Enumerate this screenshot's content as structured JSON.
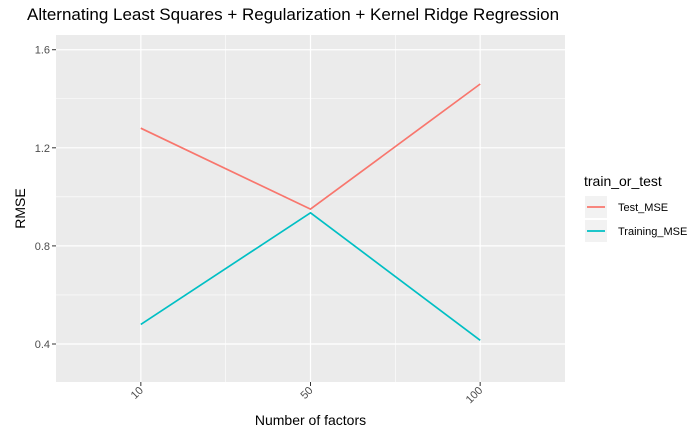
{
  "chart_data": {
    "type": "line",
    "title": "Alternating Least Squares + Regularization + Kernel Ridge Regression",
    "xlabel": "Number of factors",
    "ylabel": "RMSE",
    "x": [
      10,
      50,
      100
    ],
    "x_tick_labels": [
      "10",
      "50",
      "100"
    ],
    "y_ticks": [
      0.4,
      0.8,
      1.2,
      1.6
    ],
    "y_tick_labels": [
      "0.4",
      "0.8",
      "1.2",
      "1.6"
    ],
    "xlim": [
      0.5,
      3.5
    ],
    "ylim": [
      0.245,
      1.66
    ],
    "grid": true,
    "legend": {
      "title": "train_or_test",
      "position": "right"
    },
    "series": [
      {
        "name": "Test_MSE",
        "color": "#F8766D",
        "values": [
          1.28,
          0.95,
          1.46
        ]
      },
      {
        "name": "Training_MSE",
        "color": "#00BFC4",
        "values": [
          0.48,
          0.935,
          0.415
        ]
      }
    ]
  },
  "colors": {
    "panel_background": "#EBEBEB",
    "grid_major": "#FFFFFF",
    "axis_text": "#4D4D4D"
  }
}
